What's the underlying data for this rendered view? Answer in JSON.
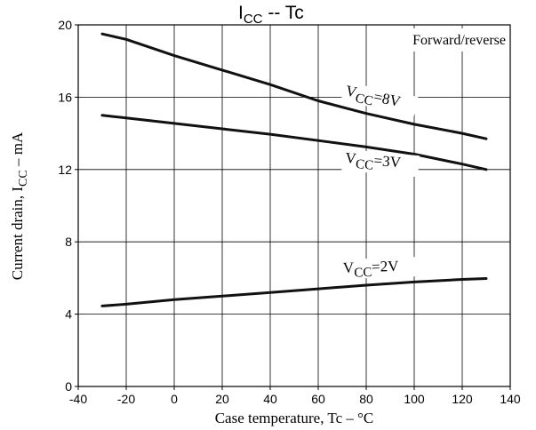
{
  "chart_data": {
    "type": "line",
    "title": {
      "main": "I",
      "sub": "CC",
      "rest": " -- Tc"
    },
    "xlabel": "Case temperature, Tc – °C",
    "ylabel": {
      "main": "Current drain, I",
      "sub": "CC",
      "rest": " – mA"
    },
    "xlim": [
      -40,
      140
    ],
    "ylim": [
      0,
      20
    ],
    "x_ticks": [
      -40,
      -20,
      0,
      20,
      40,
      60,
      80,
      100,
      120,
      140
    ],
    "y_ticks": [
      0,
      4,
      8,
      12,
      16,
      20
    ],
    "grid": true,
    "legend_note": "Forward/reverse",
    "series": [
      {
        "name": "VCC=8V",
        "label": {
          "main": "V",
          "sub": "CC",
          "rest": "=8V"
        },
        "x": [
          -30,
          -20,
          0,
          20,
          40,
          60,
          80,
          100,
          120,
          130
        ],
        "values": [
          19.5,
          19.2,
          18.3,
          17.5,
          16.7,
          15.8,
          15.1,
          14.5,
          14.0,
          13.7
        ]
      },
      {
        "name": "VCC=3V",
        "label": {
          "main": "V",
          "sub": "CC",
          "rest": "=3V"
        },
        "x": [
          -30,
          -20,
          0,
          20,
          40,
          60,
          80,
          100,
          120,
          130
        ],
        "values": [
          15.0,
          14.85,
          14.55,
          14.25,
          13.95,
          13.6,
          13.25,
          12.85,
          12.3,
          12.0
        ]
      },
      {
        "name": "VCC=2V",
        "label": {
          "main": "V",
          "sub": "CC",
          "rest": "=2V"
        },
        "x": [
          -30,
          -20,
          0,
          20,
          40,
          60,
          80,
          100,
          120,
          130
        ],
        "values": [
          4.45,
          4.55,
          4.8,
          5.0,
          5.2,
          5.4,
          5.6,
          5.78,
          5.92,
          5.97
        ]
      }
    ]
  }
}
